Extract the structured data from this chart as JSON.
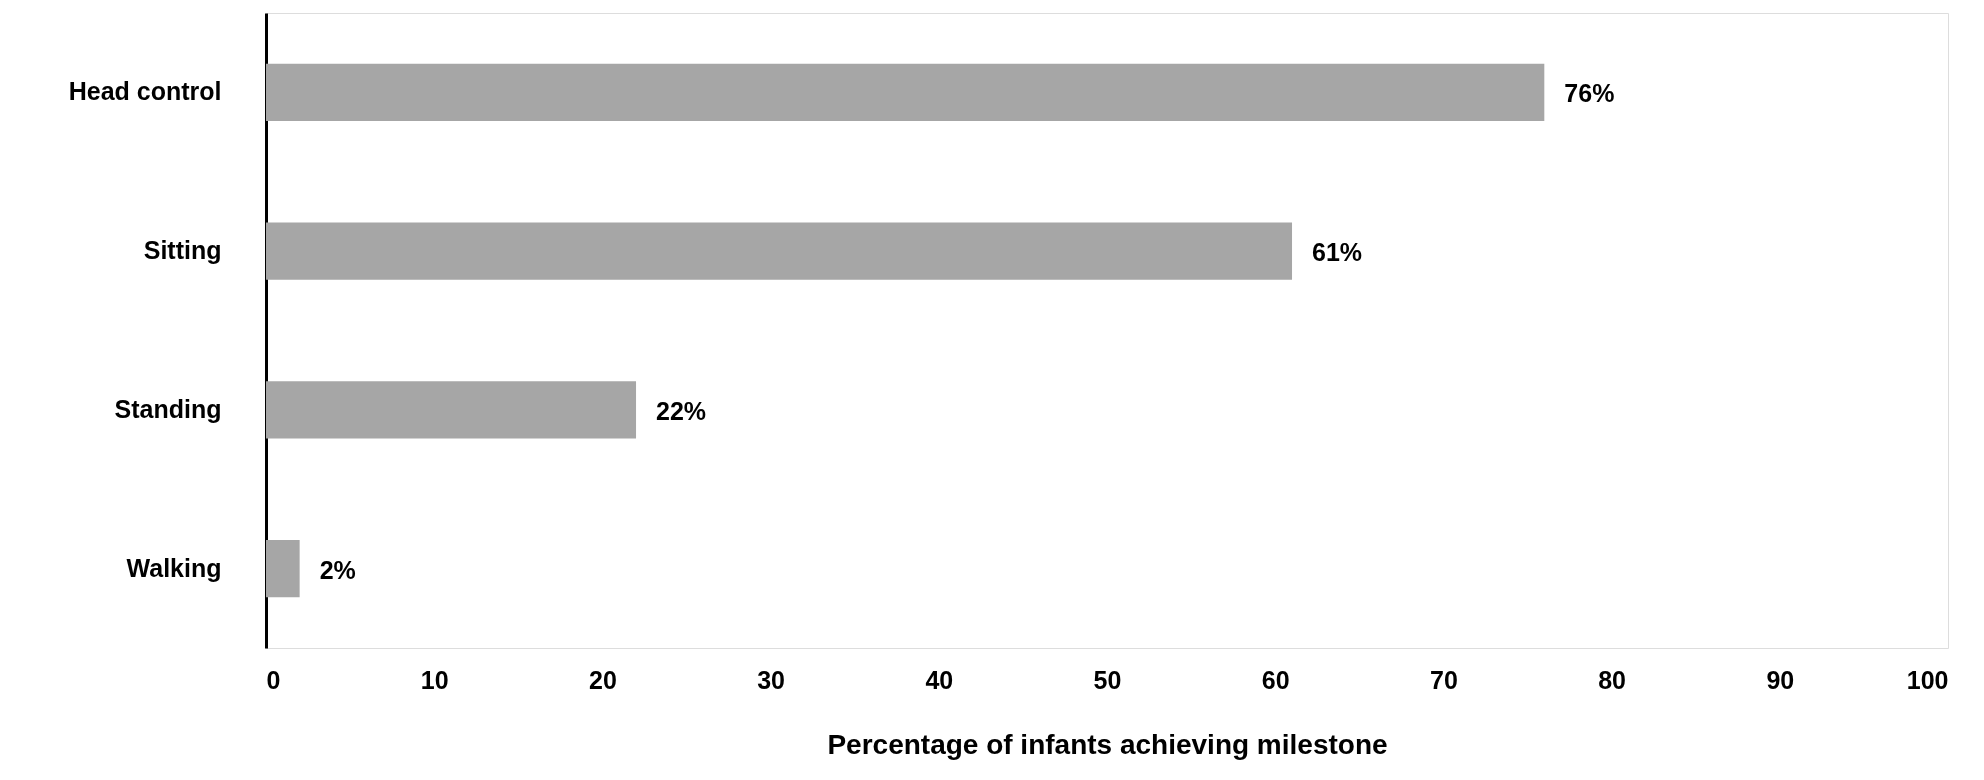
{
  "chart_data": {
    "type": "bar",
    "orientation": "horizontal",
    "xlabel": "Percentage of infants achieving milestone",
    "categories": [
      "Head control",
      "Sitting",
      "Standing",
      "Walking"
    ],
    "values": [
      76,
      61,
      22,
      2
    ],
    "color": "#a6a6a6",
    "value_labels": [
      "76%",
      "61%",
      "22%",
      "2%"
    ],
    "xlim": [
      0,
      100
    ],
    "xticks": [
      0,
      10,
      20,
      30,
      40,
      50,
      60,
      70,
      80,
      90,
      100
    ],
    "grid": false
  }
}
